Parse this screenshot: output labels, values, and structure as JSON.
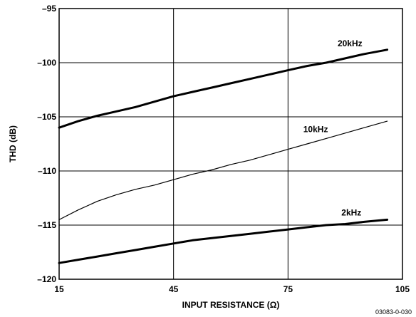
{
  "chart_data": {
    "type": "line",
    "xlabel": "INPUT RESISTANCE (Ω)",
    "ylabel": "THD (dB)",
    "xlim": [
      15,
      105
    ],
    "ylim": [
      -120,
      -95
    ],
    "xticks": [
      15,
      45,
      75,
      105
    ],
    "yticks": [
      -95,
      -100,
      -105,
      -110,
      -115,
      -120
    ],
    "xtick_labels": [
      "15",
      "45",
      "75",
      "105"
    ],
    "ytick_labels": [
      "–95",
      "–100",
      "–105",
      "–110",
      "–115",
      "–120"
    ],
    "grid": true,
    "series": [
      {
        "name": "20kHz",
        "line_weight": "heavy",
        "x": [
          15,
          20,
          25,
          30,
          35,
          40,
          45,
          50,
          55,
          60,
          65,
          70,
          75,
          80,
          85,
          90,
          95,
          101
        ],
        "y": [
          -106.0,
          -105.4,
          -104.9,
          -104.5,
          -104.1,
          -103.6,
          -103.1,
          -102.7,
          -102.3,
          -101.9,
          -101.5,
          -101.1,
          -100.7,
          -100.3,
          -100.0,
          -99.6,
          -99.2,
          -98.8
        ]
      },
      {
        "name": "10kHz",
        "line_weight": "light",
        "x": [
          15,
          20,
          25,
          30,
          35,
          40,
          45,
          50,
          55,
          60,
          65,
          70,
          75,
          80,
          85,
          90,
          95,
          101
        ],
        "y": [
          -114.5,
          -113.6,
          -112.8,
          -112.2,
          -111.7,
          -111.3,
          -110.8,
          -110.3,
          -109.9,
          -109.4,
          -109.0,
          -108.5,
          -108.0,
          -107.5,
          -107.0,
          -106.5,
          -106.0,
          -105.4
        ]
      },
      {
        "name": "2kHz",
        "line_weight": "heavy",
        "x": [
          15,
          20,
          25,
          30,
          35,
          40,
          45,
          50,
          55,
          60,
          65,
          70,
          75,
          80,
          85,
          90,
          95,
          101
        ],
        "y": [
          -118.5,
          -118.2,
          -117.9,
          -117.6,
          -117.3,
          -117.0,
          -116.7,
          -116.4,
          -116.2,
          -116.0,
          -115.8,
          -115.6,
          -115.4,
          -115.2,
          -115.0,
          -114.9,
          -114.7,
          -114.5
        ]
      }
    ],
    "annotations": [
      {
        "text": "20kHz",
        "series": "20kHz",
        "x": 88,
        "y": -98.5
      },
      {
        "text": "10kHz",
        "series": "10kHz",
        "x": 79,
        "y": -106.4
      },
      {
        "text": "2kHz",
        "series": "2kHz",
        "x": 89,
        "y": -114.1
      }
    ],
    "figure_code": "03083-0-030"
  }
}
